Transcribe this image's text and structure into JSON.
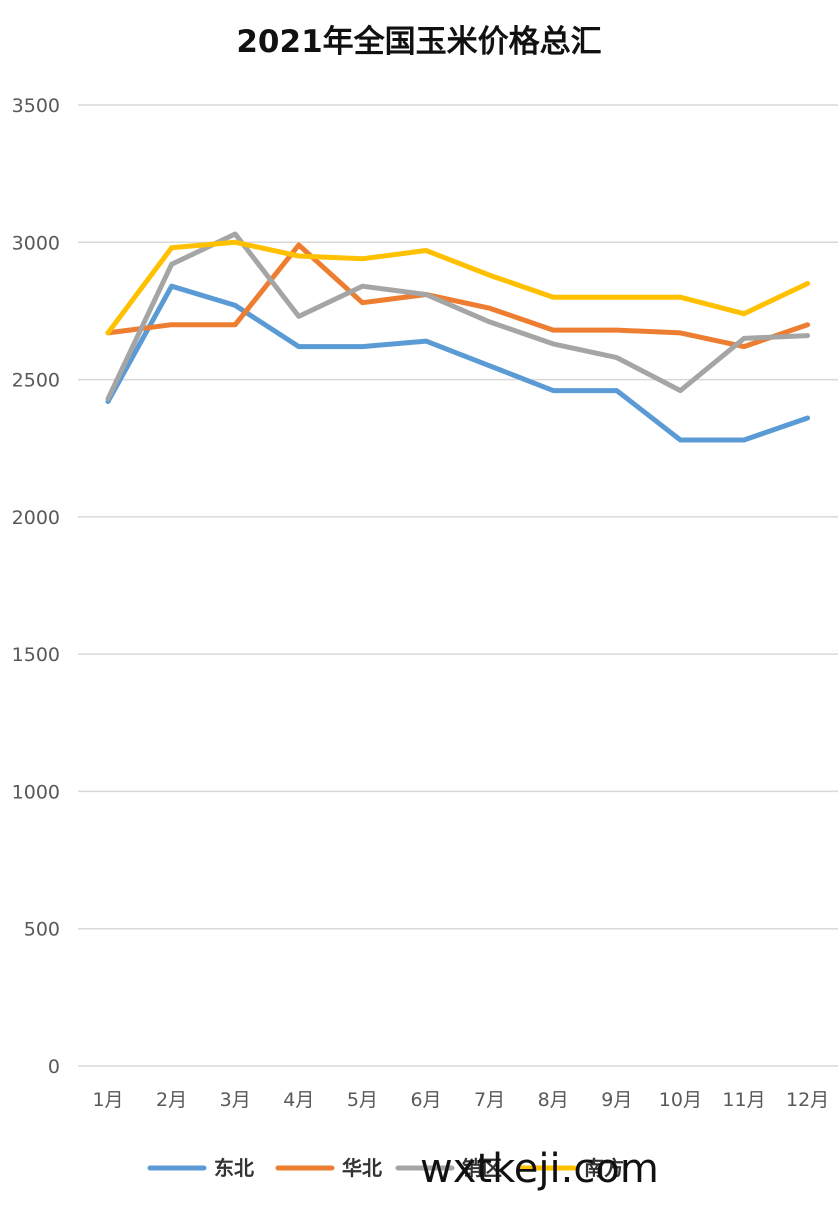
{
  "chart_data": {
    "type": "line",
    "title": "2021年全国玉米价格总汇",
    "categories": [
      "1月",
      "2月",
      "3月",
      "4月",
      "5月",
      "6月",
      "7月",
      "8月",
      "9月",
      "10月",
      "11月",
      "12月"
    ],
    "ylim": [
      0,
      3500
    ],
    "yticks": [
      0,
      500,
      1000,
      1500,
      2000,
      2500,
      3000,
      3500
    ],
    "grid": true,
    "legend_position": "bottom",
    "series": [
      {
        "name": "东北",
        "color": "#5B9BD5",
        "values": [
          2420,
          2840,
          2770,
          2620,
          2620,
          2640,
          2550,
          2460,
          2460,
          2280,
          2280,
          2360
        ]
      },
      {
        "name": "华北",
        "color": "#ED7D31",
        "values": [
          2670,
          2700,
          2700,
          2990,
          2780,
          2810,
          2760,
          2680,
          2680,
          2670,
          2620,
          2700
        ]
      },
      {
        "name": "销区",
        "color": "#A5A5A5",
        "values": [
          2430,
          2920,
          3030,
          2730,
          2840,
          2810,
          2710,
          2630,
          2580,
          2460,
          2650,
          2660
        ]
      },
      {
        "name": "南方",
        "color": "#FFC000",
        "values": [
          2670,
          2980,
          3000,
          2950,
          2940,
          2970,
          2880,
          2800,
          2800,
          2800,
          2740,
          2850
        ]
      }
    ]
  },
  "watermark": "wxtkeji.com"
}
